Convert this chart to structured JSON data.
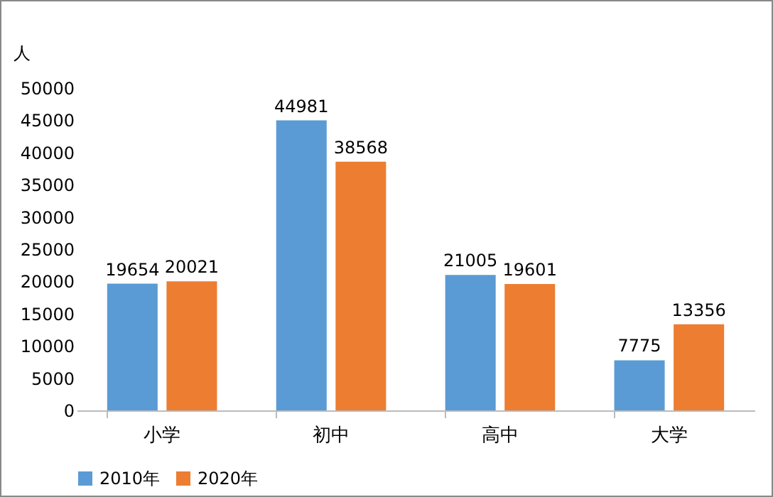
{
  "chart_data": {
    "type": "bar",
    "ylabel": "人",
    "categories": [
      "小学",
      "初中",
      "高中",
      "大学"
    ],
    "series": [
      {
        "name": "2010年",
        "color": "#5b9bd5",
        "values": [
          19654,
          44981,
          21005,
          7775
        ]
      },
      {
        "name": "2020年",
        "color": "#ed7d31",
        "values": [
          20021,
          38568,
          19601,
          13356
        ]
      }
    ],
    "ylim": [
      0,
      50000
    ],
    "yticks": [
      0,
      5000,
      10000,
      15000,
      20000,
      25000,
      30000,
      35000,
      40000,
      45000,
      50000
    ],
    "grid": false,
    "legend": "bottom",
    "data_labels": true
  }
}
